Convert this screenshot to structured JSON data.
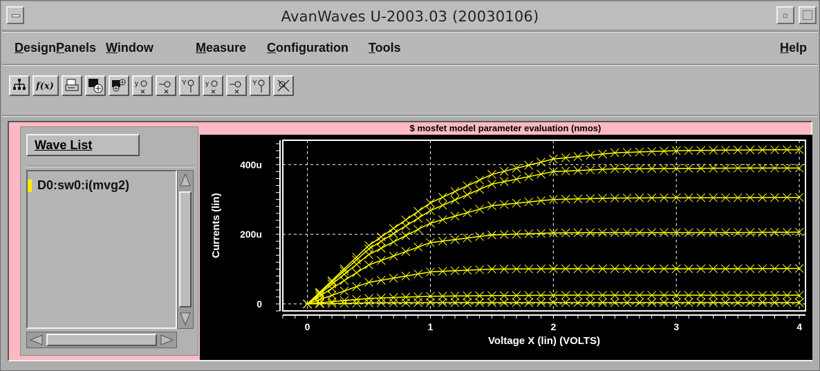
{
  "window": {
    "title": "AvanWaves U-2003.03  (20030106)"
  },
  "menu": {
    "design": "Design",
    "panels": "Panels",
    "window": "Window",
    "measure": "Measure",
    "configuration": "Configuration",
    "tools": "Tools",
    "help": "Help"
  },
  "toolbar": {
    "icons": [
      "hierarchy-icon",
      "function-icon",
      "print-icon",
      "panel-add-icon",
      "panel-insert-icon",
      "measure-x-icon",
      "measure-point-icon",
      "measure-y-icon",
      "measure-x2-icon",
      "measure-point2-icon",
      "measure-y2-icon",
      "clear-measure-icon"
    ]
  },
  "wavelist": {
    "button": "Wave List",
    "items": [
      {
        "label": "D0:sw0:i(mvg2)",
        "color": "#ffeb00"
      }
    ]
  },
  "chart_data": {
    "type": "line",
    "title": "$ mosfet model parameter evaluation (nmos)",
    "xlabel": "Voltage X (lin) (VOLTS)",
    "ylabel": "Currents (lin)",
    "xlim": [
      -0.2,
      4.05
    ],
    "ylim": [
      -20,
      470
    ],
    "xticks": [
      "0",
      "1",
      "2",
      "3",
      "4"
    ],
    "xtick_values": [
      0,
      1,
      2,
      3,
      4
    ],
    "yticks": [
      "0",
      "200u",
      "400u"
    ],
    "ytick_values": [
      0,
      200,
      400
    ],
    "grid": true,
    "series_color": "#ffff00",
    "series": [
      {
        "x": [
          0,
          0.5,
          1,
          1.5,
          2,
          2.5,
          3,
          3.5,
          4
        ],
        "y": [
          0,
          3,
          4,
          4,
          4,
          4,
          4,
          4,
          4
        ]
      },
      {
        "x": [
          0,
          0.5,
          1,
          1.5,
          2,
          2.5,
          3,
          3.5,
          4
        ],
        "y": [
          0,
          16,
          22,
          24,
          25,
          25,
          25,
          25,
          25
        ]
      },
      {
        "x": [
          0,
          0.5,
          1,
          1.5,
          2,
          2.5,
          3,
          3.5,
          4
        ],
        "y": [
          0,
          62,
          92,
          100,
          101,
          101,
          101,
          101,
          102
        ]
      },
      {
        "x": [
          0,
          0.5,
          1,
          1.5,
          2,
          2.5,
          3,
          3.5,
          4
        ],
        "y": [
          0,
          112,
          176,
          198,
          204,
          205,
          205,
          205,
          206
        ]
      },
      {
        "x": [
          0,
          0.5,
          1,
          1.5,
          2,
          2.5,
          3,
          3.5,
          4
        ],
        "y": [
          0,
          142,
          232,
          282,
          300,
          304,
          305,
          305,
          306
        ]
      },
      {
        "x": [
          0,
          0.5,
          1,
          1.5,
          2,
          2.5,
          3,
          3.5,
          4
        ],
        "y": [
          0,
          158,
          268,
          344,
          380,
          388,
          389,
          390,
          390
        ]
      },
      {
        "x": [
          0,
          0.5,
          1,
          1.5,
          2,
          2.5,
          3,
          3.5,
          4
        ],
        "y": [
          0,
          168,
          290,
          372,
          416,
          434,
          440,
          442,
          443
        ]
      }
    ]
  }
}
